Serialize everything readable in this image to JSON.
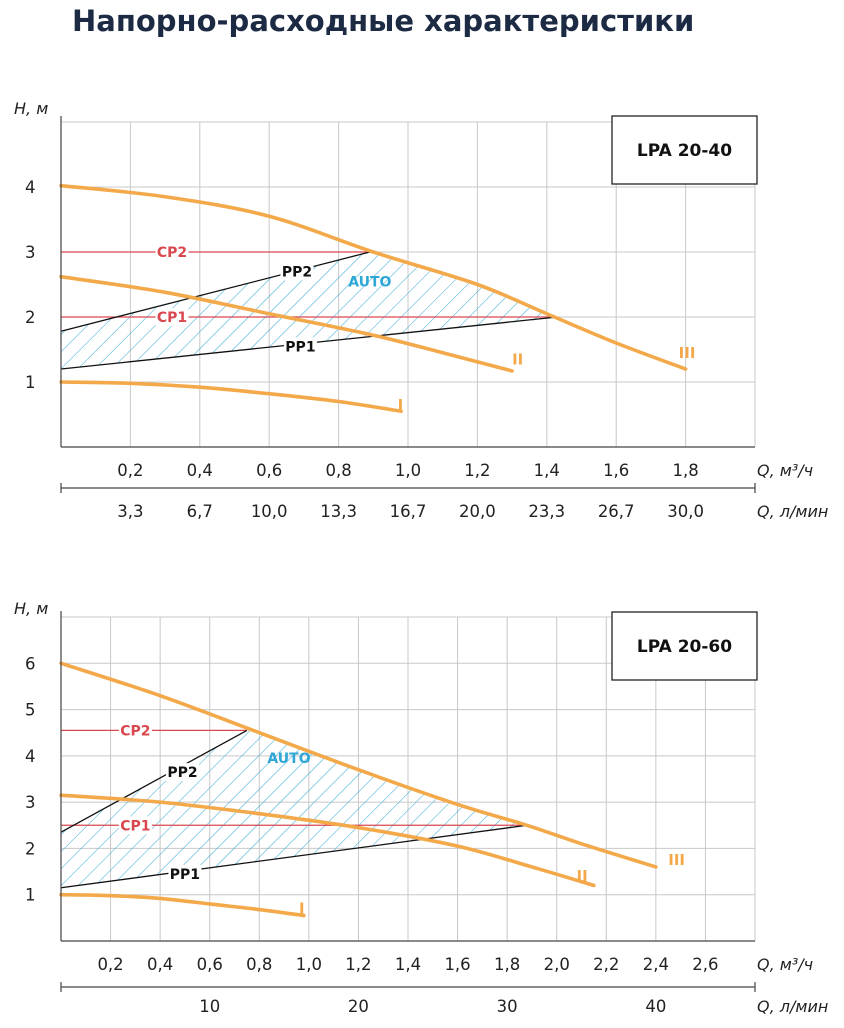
{
  "title": "Напорно-расходные характеристики",
  "colors": {
    "curve": "#f3a94a",
    "cp": "#d9474f",
    "pp": "#111111",
    "auto": "#2fa7d6",
    "title": "#1c2a44"
  },
  "chart_data": [
    {
      "type": "line",
      "model": "LPA 20-40",
      "ylabel": "H, м",
      "xlabel": "Q, м³/ч",
      "x2label": "Q, л/мин",
      "xlim": [
        0,
        2.0
      ],
      "ylim": [
        0,
        5
      ],
      "y_ticks": [
        1,
        2,
        3,
        4
      ],
      "y_tick_labels": [
        "1",
        "2",
        "3",
        "4"
      ],
      "x_ticks": [
        0.2,
        0.4,
        0.6,
        0.8,
        1.0,
        1.2,
        1.4,
        1.6,
        1.8
      ],
      "x_tick_labels": [
        "0,2",
        "0,4",
        "0,6",
        "0,8",
        "1,0",
        "1,2",
        "1,4",
        "1,6",
        "1,8"
      ],
      "x2_ticks": [
        0.2,
        0.4,
        0.6,
        0.8,
        1.0,
        1.2,
        1.4,
        1.6,
        1.8
      ],
      "x2_tick_labels": [
        "3,3",
        "6,7",
        "10,0",
        "13,3",
        "16,7",
        "20,0",
        "23,3",
        "26,7",
        "30,0"
      ],
      "grid_x": [
        0.2,
        0.4,
        0.6,
        0.8,
        1.0,
        1.2,
        1.4,
        1.6,
        1.8,
        2.0
      ],
      "grid_y": [
        1,
        2,
        3,
        4
      ],
      "series": [
        {
          "name": "III",
          "x": [
            0,
            0.3,
            0.6,
            0.9,
            1.2,
            1.4,
            1.6,
            1.8
          ],
          "y": [
            4.02,
            3.85,
            3.55,
            3.0,
            2.5,
            2.05,
            1.6,
            1.2
          ]
        },
        {
          "name": "II",
          "x": [
            0,
            0.3,
            0.6,
            0.9,
            1.1,
            1.3
          ],
          "y": [
            2.62,
            2.38,
            2.05,
            1.72,
            1.45,
            1.17
          ]
        },
        {
          "name": "I",
          "x": [
            0,
            0.2,
            0.4,
            0.6,
            0.8,
            0.98
          ],
          "y": [
            1.0,
            0.98,
            0.92,
            0.82,
            0.7,
            0.55
          ]
        }
      ],
      "control_lines": [
        {
          "name": "CP2",
          "kind": "cp",
          "x": [
            0,
            0.89
          ],
          "y": [
            3.0,
            3.0
          ],
          "label_x": 0.32,
          "label_y": 3.0
        },
        {
          "name": "CP1",
          "kind": "cp",
          "x": [
            0,
            1.43
          ],
          "y": [
            2.0,
            2.0
          ],
          "label_x": 0.32,
          "label_y": 2.0
        },
        {
          "name": "PP2",
          "kind": "pp",
          "x": [
            0,
            0.89
          ],
          "y": [
            1.78,
            3.0
          ],
          "label_x": 0.68,
          "label_y": 2.7
        },
        {
          "name": "PP1",
          "kind": "pp",
          "x": [
            0,
            1.43
          ],
          "y": [
            1.2,
            2.0
          ],
          "label_x": 0.69,
          "label_y": 1.55
        }
      ],
      "auto_label": {
        "text": "AUTO",
        "x": 0.89,
        "y": 2.55
      },
      "curve_labels": [
        {
          "text": "III",
          "x": 1.78,
          "y": 1.45
        },
        {
          "text": "II",
          "x": 1.3,
          "y": 1.35
        },
        {
          "text": "I",
          "x": 0.97,
          "y": 0.65
        }
      ]
    },
    {
      "type": "line",
      "model": "LPA 20-60",
      "ylabel": "H, м",
      "xlabel": "Q, м³/ч",
      "x2label": "Q, л/мин",
      "xlim": [
        0,
        2.8
      ],
      "ylim": [
        0,
        7
      ],
      "y_ticks": [
        1,
        2,
        3,
        4,
        5,
        6
      ],
      "y_tick_labels": [
        "1",
        "2",
        "3",
        "4",
        "5",
        "6"
      ],
      "x_ticks": [
        0.2,
        0.4,
        0.6,
        0.8,
        1.0,
        1.2,
        1.4,
        1.6,
        1.8,
        2.0,
        2.2,
        2.4,
        2.6
      ],
      "x_tick_labels": [
        "0,2",
        "0,4",
        "0,6",
        "0,8",
        "1,0",
        "1,2",
        "1,4",
        "1,6",
        "1,8",
        "2,0",
        "2,2",
        "2,4",
        "2,6"
      ],
      "x2_ticks": [
        0.6,
        1.2,
        1.8,
        2.4
      ],
      "x2_tick_labels": [
        "10",
        "20",
        "30",
        "40"
      ],
      "grid_x": [
        0.2,
        0.4,
        0.6,
        0.8,
        1.0,
        1.2,
        1.4,
        1.6,
        1.8,
        2.0,
        2.2,
        2.4,
        2.6,
        2.8
      ],
      "grid_y": [
        1,
        2,
        3,
        4,
        5,
        6
      ],
      "series": [
        {
          "name": "III",
          "x": [
            0,
            0.4,
            0.8,
            1.2,
            1.6,
            1.88,
            2.1,
            2.4
          ],
          "y": [
            6.0,
            5.3,
            4.5,
            3.7,
            2.95,
            2.5,
            2.1,
            1.6
          ]
        },
        {
          "name": "II",
          "x": [
            0,
            0.4,
            0.8,
            1.2,
            1.6,
            1.9,
            2.15
          ],
          "y": [
            3.15,
            3.0,
            2.75,
            2.45,
            2.05,
            1.6,
            1.2
          ]
        },
        {
          "name": "I",
          "x": [
            0,
            0.2,
            0.4,
            0.6,
            0.8,
            0.98
          ],
          "y": [
            1.0,
            0.98,
            0.92,
            0.8,
            0.68,
            0.55
          ]
        }
      ],
      "control_lines": [
        {
          "name": "CP2",
          "kind": "cp",
          "x": [
            0,
            0.75
          ],
          "y": [
            4.55,
            4.55
          ],
          "label_x": 0.3,
          "label_y": 4.55
        },
        {
          "name": "CP1",
          "kind": "cp",
          "x": [
            0,
            1.88
          ],
          "y": [
            2.5,
            2.5
          ],
          "label_x": 0.3,
          "label_y": 2.5
        },
        {
          "name": "PP2",
          "kind": "pp",
          "x": [
            0,
            0.75
          ],
          "y": [
            2.35,
            4.55
          ],
          "label_x": 0.49,
          "label_y": 3.65
        },
        {
          "name": "PP1",
          "kind": "pp",
          "x": [
            0,
            1.88
          ],
          "y": [
            1.15,
            2.5
          ],
          "label_x": 0.5,
          "label_y": 1.45
        }
      ],
      "auto_label": {
        "text": "AUTO",
        "x": 0.92,
        "y": 3.95
      },
      "curve_labels": [
        {
          "text": "III",
          "x": 2.45,
          "y": 1.75
        },
        {
          "text": "II",
          "x": 2.08,
          "y": 1.4
        },
        {
          "text": "I",
          "x": 0.96,
          "y": 0.7
        }
      ]
    }
  ]
}
